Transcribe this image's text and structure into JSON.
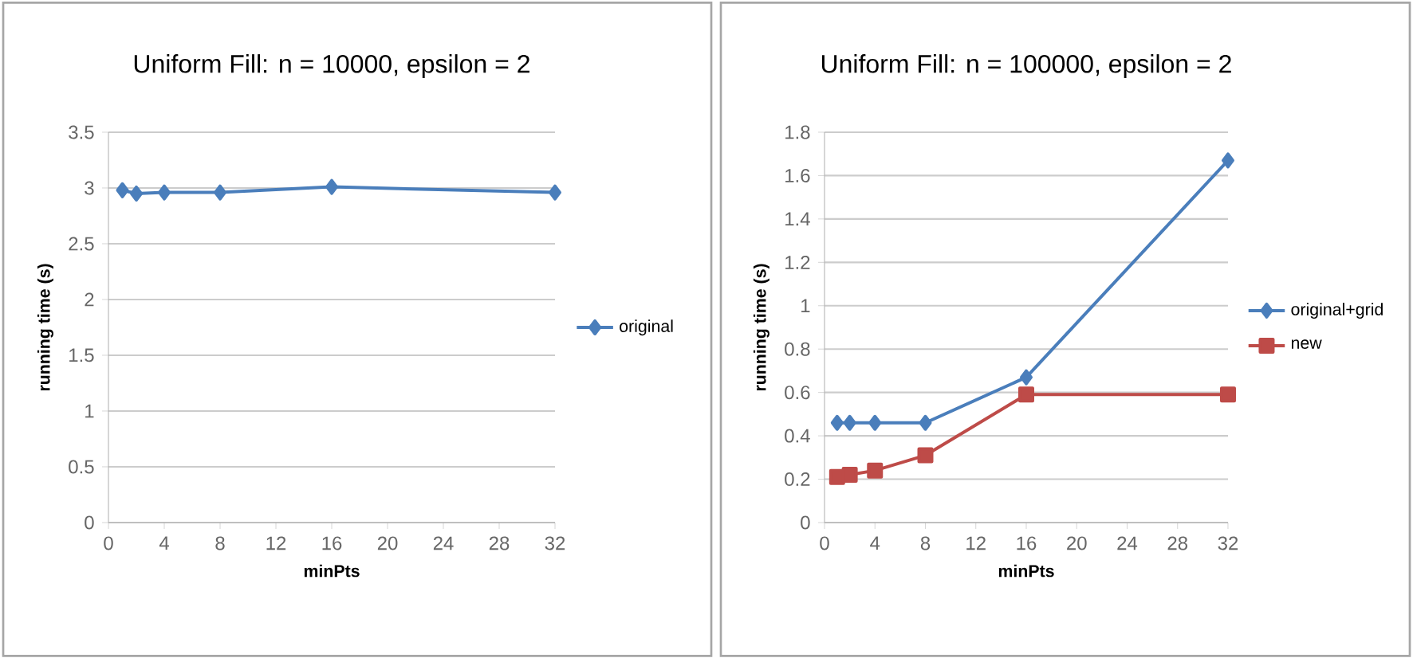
{
  "chart_data": [
    {
      "type": "line",
      "title": "Uniform Fill: n = 10000, epsilon = 2",
      "xlabel": "minPts",
      "ylabel": "running time (s)",
      "x": [
        1,
        2,
        4,
        8,
        16,
        32
      ],
      "series": [
        {
          "name": "original",
          "color": "#4a7ebb",
          "marker": "diamond",
          "values": [
            2.98,
            2.95,
            2.96,
            2.96,
            3.01,
            2.96
          ]
        }
      ],
      "xlim": [
        0,
        32
      ],
      "xticks": [
        0,
        4,
        8,
        12,
        16,
        20,
        24,
        28,
        32
      ],
      "ylim": [
        0,
        3.5
      ],
      "yticks": [
        0,
        0.5,
        1,
        1.5,
        2,
        2.5,
        3,
        3.5
      ],
      "grid": "y",
      "legend": "right",
      "line_style": "solid"
    },
    {
      "type": "line",
      "title": "Uniform Fill: n = 100000, epsilon = 2",
      "xlabel": "minPts",
      "ylabel": "running time (s)",
      "x": [
        1,
        2,
        4,
        8,
        16,
        32
      ],
      "series": [
        {
          "name": "original+grid",
          "color": "#4a7ebb",
          "marker": "diamond",
          "values": [
            0.46,
            0.46,
            0.46,
            0.46,
            0.67,
            1.67
          ]
        },
        {
          "name": "new",
          "color": "#be4b48",
          "marker": "square",
          "values": [
            0.21,
            0.22,
            0.24,
            0.31,
            0.59,
            0.59
          ]
        }
      ],
      "xlim": [
        0,
        32
      ],
      "xticks": [
        0,
        4,
        8,
        12,
        16,
        20,
        24,
        28,
        32
      ],
      "ylim": [
        0,
        1.8
      ],
      "yticks": [
        0,
        0.2,
        0.4,
        0.6,
        0.8,
        1,
        1.2,
        1.4,
        1.6,
        1.8
      ],
      "grid": "y",
      "legend": "right",
      "line_style": "solid"
    }
  ]
}
